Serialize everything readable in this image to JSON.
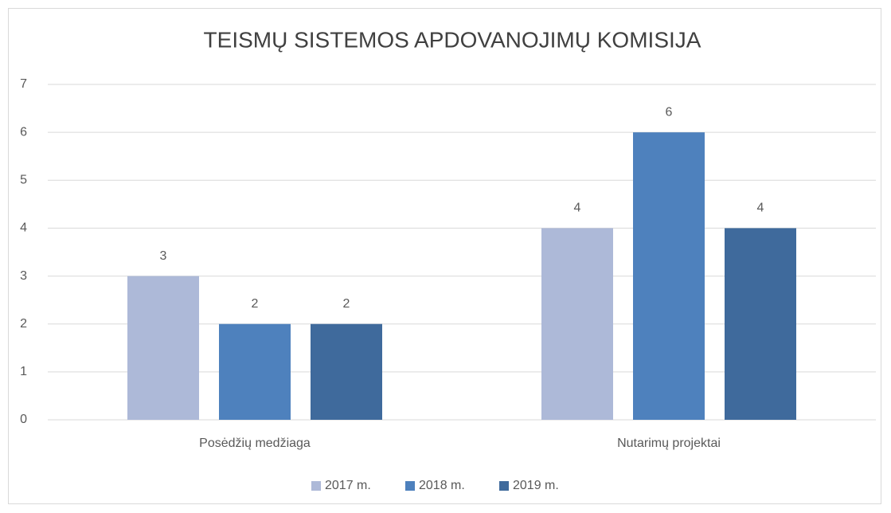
{
  "chart_data": {
    "type": "bar",
    "title": "TEISMŲ SISTEMOS APDOVANOJIMŲ KOMISIJA",
    "categories": [
      "Posėdžių medžiaga",
      "Nutarimų projektai"
    ],
    "series": [
      {
        "name": "2017 m.",
        "color": "#adb9d8",
        "values": [
          3,
          4
        ]
      },
      {
        "name": "2018 m.",
        "color": "#4e81bd",
        "values": [
          2,
          6
        ]
      },
      {
        "name": "2019 m.",
        "color": "#3f6a9c",
        "values": [
          2,
          4
        ]
      }
    ],
    "ylim": [
      0,
      7
    ],
    "yticks": [
      0,
      1,
      2,
      3,
      4,
      5,
      6,
      7
    ],
    "grid": true,
    "legend": "bottom"
  }
}
